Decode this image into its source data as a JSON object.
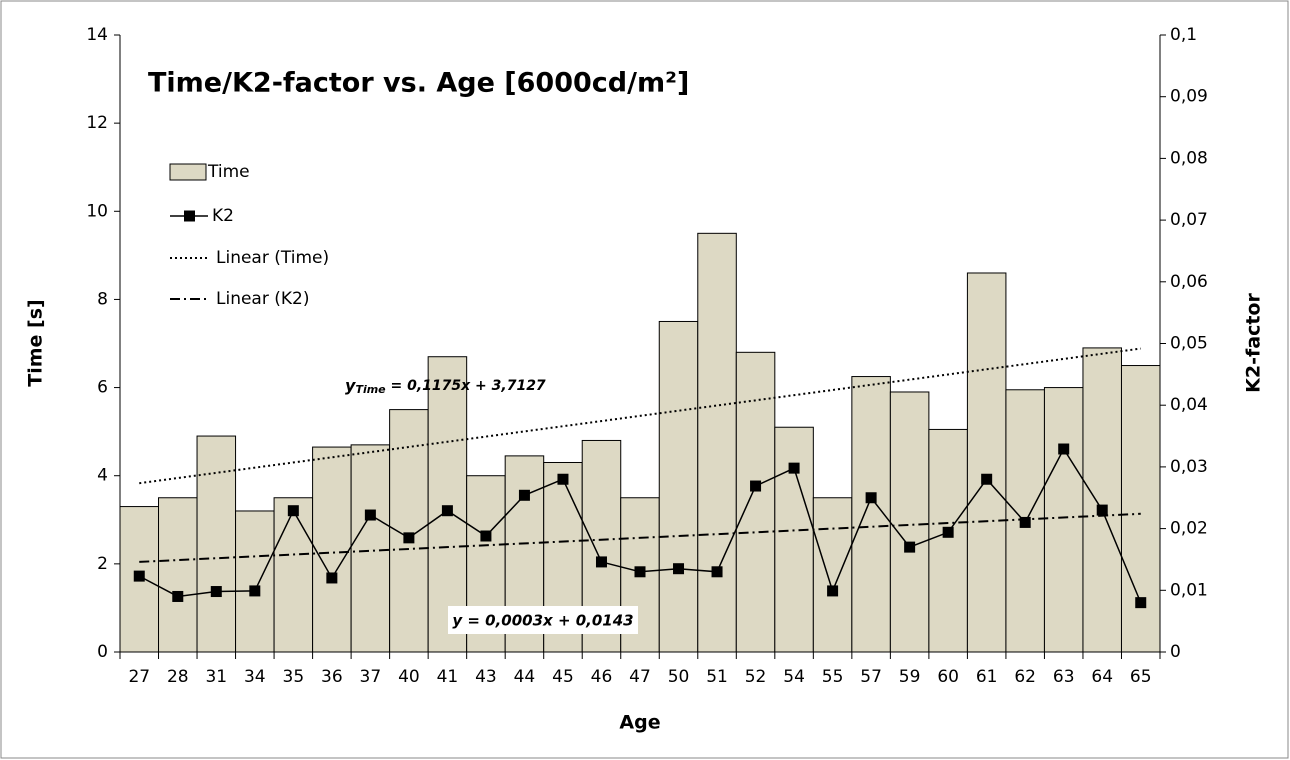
{
  "chart_data": {
    "type": "bar-line",
    "title": "Time/K2-factor vs. Age [6000cd/m²]",
    "x_label": "Age",
    "y_label": "Time [s]",
    "y2_label": "K2-factor",
    "categories": [
      "27",
      "28",
      "31",
      "34",
      "35",
      "36",
      "37",
      "40",
      "41",
      "43",
      "44",
      "45",
      "46",
      "47",
      "50",
      "51",
      "52",
      "54",
      "55",
      "57",
      "59",
      "60",
      "61",
      "62",
      "63",
      "64",
      "65"
    ],
    "series": [
      {
        "name": "Time",
        "type": "bar",
        "color": "#ddd9c4",
        "values": [
          3.3,
          3.5,
          4.9,
          3.2,
          3.5,
          4.65,
          4.7,
          5.5,
          6.7,
          4.0,
          4.45,
          4.3,
          4.8,
          3.5,
          7.5,
          9.5,
          6.8,
          5.1,
          3.5,
          6.25,
          5.9,
          5.05,
          8.6,
          5.95,
          6.0,
          6.9,
          6.5
        ]
      },
      {
        "name": "K2",
        "type": "line",
        "axis": "y2",
        "color": "#000000",
        "values": [
          0.0123,
          0.009,
          0.0098,
          0.0099,
          0.0229,
          0.012,
          0.0222,
          0.0185,
          0.0229,
          0.0188,
          0.0254,
          0.028,
          0.0146,
          0.013,
          0.0135,
          0.013,
          0.0269,
          0.0298,
          0.0099,
          0.025,
          0.017,
          0.0194,
          0.028,
          0.021,
          0.0329,
          0.023,
          0.008
        ]
      }
    ],
    "trendlines": [
      {
        "name": "Linear (Time)",
        "series": 0,
        "style": "dotted",
        "slope": 0.1175,
        "intercept": 3.7127,
        "equation_y": "y",
        "equation_subscript": "Time",
        "equation": " = 0,1175x + 3,7127"
      },
      {
        "name": "Linear (K2)",
        "series": 1,
        "style": "dashdot",
        "slope": 0.0003,
        "intercept": 0.0143,
        "equation": "y = 0,0003x + 0,0143"
      }
    ],
    "ylim": [
      0,
      14
    ],
    "yticks": [
      0,
      2,
      4,
      6,
      8,
      10,
      12,
      14
    ],
    "y2lim": [
      0,
      0.1
    ],
    "y2ticks": [
      0,
      {
        "value": 0.01,
        "label": "0,01"
      },
      {
        "value": 0.02,
        "label": "0,02"
      },
      {
        "value": 0.03,
        "label": "0,03"
      },
      {
        "value": 0.04,
        "label": "0,04"
      },
      {
        "value": 0.05,
        "label": "0,05"
      },
      {
        "value": 0.06,
        "label": "0,06"
      },
      {
        "value": 0.07,
        "label": "0,07"
      },
      {
        "value": 0.08,
        "label": "0,08"
      },
      {
        "value": 0.09,
        "label": "0,09"
      },
      {
        "value": 0.1,
        "label": "0,1"
      }
    ],
    "legend": "upper left",
    "grid": false
  }
}
